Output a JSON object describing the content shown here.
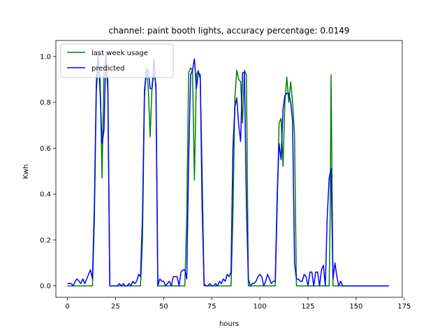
{
  "chart_data": {
    "type": "line",
    "title": "channel: paint booth lights, accuracy percentage: 0.0149",
    "xlabel": "hours",
    "ylabel": "Kwh",
    "xlim": [
      -6,
      174
    ],
    "ylim": [
      -0.05,
      1.07
    ],
    "xticks": [
      0,
      25,
      50,
      75,
      100,
      125,
      150,
      175
    ],
    "yticks": [
      0.0,
      0.2,
      0.4,
      0.6,
      0.8,
      1.0
    ],
    "xtick_labels": [
      "0",
      "25",
      "50",
      "75",
      "100",
      "125",
      "150",
      "175"
    ],
    "ytick_labels": [
      "0.0",
      "0.2",
      "0.4",
      "0.6",
      "0.8",
      "1.0"
    ],
    "grid": false,
    "legend": "top-left",
    "series": [
      {
        "name": "last week usage",
        "color": "#008000",
        "points": [
          [
            0,
            0.0
          ],
          [
            13,
            0.0
          ],
          [
            14,
            0.28
          ],
          [
            15,
            0.85
          ],
          [
            16,
            0.96
          ],
          [
            17,
            0.9
          ],
          [
            18,
            0.47
          ],
          [
            19,
            0.95
          ],
          [
            20,
            0.98
          ],
          [
            21,
            0.9
          ],
          [
            22,
            0.0
          ],
          [
            38,
            0.0
          ],
          [
            39,
            0.2
          ],
          [
            40,
            0.82
          ],
          [
            41,
            0.95
          ],
          [
            42,
            0.86
          ],
          [
            43,
            0.65
          ],
          [
            44,
            0.88
          ],
          [
            45,
            0.92
          ],
          [
            46,
            0.88
          ],
          [
            47,
            0.0
          ],
          [
            61,
            0.0
          ],
          [
            62,
            0.3
          ],
          [
            63,
            0.93
          ],
          [
            64,
            0.95
          ],
          [
            65,
            0.94
          ],
          [
            66,
            0.46
          ],
          [
            67,
            0.92
          ],
          [
            68,
            0.94
          ],
          [
            69,
            0.9
          ],
          [
            70,
            0.5
          ],
          [
            71,
            0.0
          ],
          [
            85,
            0.0
          ],
          [
            86,
            0.3
          ],
          [
            87,
            0.82
          ],
          [
            88,
            0.94
          ],
          [
            89,
            0.9
          ],
          [
            90,
            0.89
          ],
          [
            91,
            0.71
          ],
          [
            92,
            0.94
          ],
          [
            93,
            0.92
          ],
          [
            94,
            0.0
          ],
          [
            108,
            0.0
          ],
          [
            109,
            0.35
          ],
          [
            110,
            0.71
          ],
          [
            111,
            0.73
          ],
          [
            112,
            0.52
          ],
          [
            113,
            0.8
          ],
          [
            114,
            0.91
          ],
          [
            115,
            0.8
          ],
          [
            116,
            0.89
          ],
          [
            117,
            0.8
          ],
          [
            118,
            0.66
          ],
          [
            119,
            0.0
          ],
          [
            136,
            0.0
          ],
          [
            136.5,
            0.3
          ],
          [
            137,
            0.92
          ],
          [
            138,
            0.0
          ],
          [
            167,
            0.0
          ]
        ]
      },
      {
        "name": "predicted",
        "color": "#0000ff",
        "points": [
          [
            0,
            0.01
          ],
          [
            1,
            0.01
          ],
          [
            2,
            0.01
          ],
          [
            3,
            0.0
          ],
          [
            4,
            0.02
          ],
          [
            5,
            0.03
          ],
          [
            6,
            0.02
          ],
          [
            7,
            0.01
          ],
          [
            8,
            0.03
          ],
          [
            9,
            0.01
          ],
          [
            10,
            0.03
          ],
          [
            11,
            0.05
          ],
          [
            12,
            0.07
          ],
          [
            13,
            0.03
          ],
          [
            14,
            0.35
          ],
          [
            15,
            0.88
          ],
          [
            16,
            1.01
          ],
          [
            17,
            0.84
          ],
          [
            18,
            0.62
          ],
          [
            19,
            0.68
          ],
          [
            20,
            1.02
          ],
          [
            21,
            0.85
          ],
          [
            22,
            0.0
          ],
          [
            23,
            0.0
          ],
          [
            24,
            0.0
          ],
          [
            25,
            0.0
          ],
          [
            26,
            0.0
          ],
          [
            27,
            0.01
          ],
          [
            28,
            0.0
          ],
          [
            29,
            0.01
          ],
          [
            30,
            0.0
          ],
          [
            31,
            0.0
          ],
          [
            32,
            0.01
          ],
          [
            33,
            0.0
          ],
          [
            34,
            0.02
          ],
          [
            35,
            0.01
          ],
          [
            36,
            0.02
          ],
          [
            37,
            0.05
          ],
          [
            38,
            0.04
          ],
          [
            39,
            0.3
          ],
          [
            40,
            0.85
          ],
          [
            41,
            0.94
          ],
          [
            42,
            0.94
          ],
          [
            43,
            0.86
          ],
          [
            44,
            0.86
          ],
          [
            45,
            0.99
          ],
          [
            46,
            0.85
          ],
          [
            47,
            0.0
          ],
          [
            48,
            0.03
          ],
          [
            49,
            0.02
          ],
          [
            50,
            0.02
          ],
          [
            51,
            0.0
          ],
          [
            52,
            0.01
          ],
          [
            53,
            0.02
          ],
          [
            54,
            0.0
          ],
          [
            55,
            0.04
          ],
          [
            56,
            0.04
          ],
          [
            57,
            0.04
          ],
          [
            58,
            0.0
          ],
          [
            59,
            0.06
          ],
          [
            60,
            0.07
          ],
          [
            61,
            0.07
          ],
          [
            62,
            0.03
          ],
          [
            63,
            0.55
          ],
          [
            64,
            0.92
          ],
          [
            65,
            0.94
          ],
          [
            66,
            0.99
          ],
          [
            67,
            0.86
          ],
          [
            68,
            0.93
          ],
          [
            69,
            0.92
          ],
          [
            70,
            0.34
          ],
          [
            71,
            0.01
          ],
          [
            72,
            0.0
          ],
          [
            73,
            0.0
          ],
          [
            74,
            0.01
          ],
          [
            75,
            0.0
          ],
          [
            76,
            0.0
          ],
          [
            77,
            0.01
          ],
          [
            78,
            0.0
          ],
          [
            79,
            0.02
          ],
          [
            80,
            0.01
          ],
          [
            81,
            0.03
          ],
          [
            82,
            0.02
          ],
          [
            83,
            0.05
          ],
          [
            84,
            0.04
          ],
          [
            85,
            0.06
          ],
          [
            86,
            0.6
          ],
          [
            87,
            0.78
          ],
          [
            88,
            0.82
          ],
          [
            89,
            0.7
          ],
          [
            90,
            0.63
          ],
          [
            91,
            0.93
          ],
          [
            92,
            0.93
          ],
          [
            93,
            0.35
          ],
          [
            94,
            0.03
          ],
          [
            95,
            0.0
          ],
          [
            96,
            0.01
          ],
          [
            97,
            0.01
          ],
          [
            98,
            0.02
          ],
          [
            99,
            0.04
          ],
          [
            100,
            0.05
          ],
          [
            101,
            0.04
          ],
          [
            102,
            0.0
          ],
          [
            103,
            0.02
          ],
          [
            104,
            0.05
          ],
          [
            105,
            0.03
          ],
          [
            106,
            0.01
          ],
          [
            107,
            0.02
          ],
          [
            108,
            0.02
          ],
          [
            109,
            0.4
          ],
          [
            110,
            0.62
          ],
          [
            111,
            0.55
          ],
          [
            112,
            0.77
          ],
          [
            113,
            0.83
          ],
          [
            114,
            0.84
          ],
          [
            115,
            0.84
          ],
          [
            116,
            0.8
          ],
          [
            117,
            0.72
          ],
          [
            118,
            0.1
          ],
          [
            119,
            0.03
          ],
          [
            120,
            0.03
          ],
          [
            121,
            0.02
          ],
          [
            122,
            0.02
          ],
          [
            123,
            0.05
          ],
          [
            124,
            0.04
          ],
          [
            125,
            0.0
          ],
          [
            126,
            0.06
          ],
          [
            127,
            0.06
          ],
          [
            128,
            0.0
          ],
          [
            129,
            0.06
          ],
          [
            130,
            0.06
          ],
          [
            131,
            0.0
          ],
          [
            132,
            0.07
          ],
          [
            133,
            0.09
          ],
          [
            134,
            0.0
          ],
          [
            135,
            0.3
          ],
          [
            136,
            0.47
          ],
          [
            137,
            0.51
          ],
          [
            138,
            0.03
          ],
          [
            139,
            0.1
          ],
          [
            140,
            0.04
          ],
          [
            141,
            0.0
          ],
          [
            142,
            0.02
          ],
          [
            143,
            0.0
          ],
          [
            150,
            0.0
          ],
          [
            160,
            0.0
          ],
          [
            167,
            0.0
          ]
        ]
      }
    ]
  }
}
